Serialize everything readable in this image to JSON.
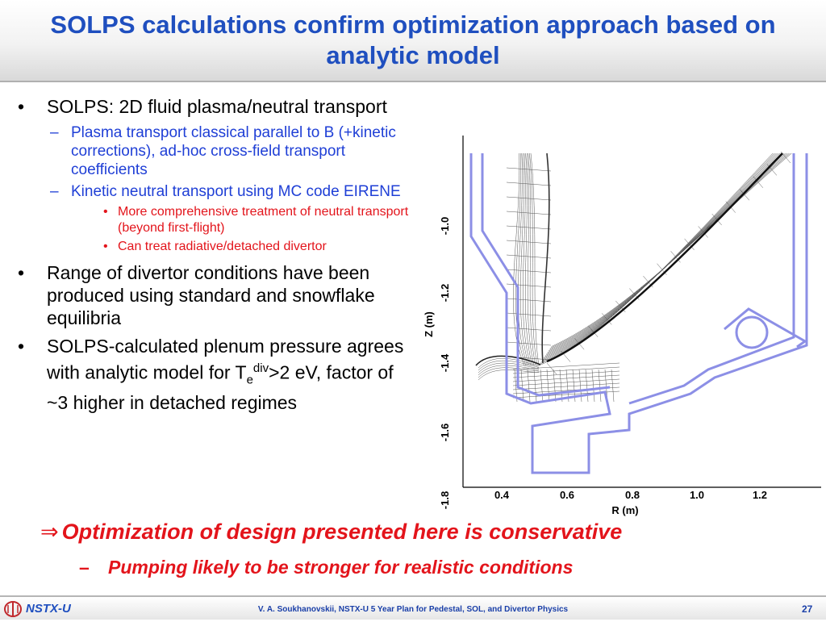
{
  "slide": {
    "title": "SOLPS calculations confirm optimization approach based on analytic model",
    "bullets": [
      {
        "text": "SOLPS: 2D fluid plasma/neutral transport"
      },
      {
        "text": "Plasma transport classical parallel to B (+kinetic corrections), ad-hoc cross-field transport coefficients"
      },
      {
        "text": "Kinetic neutral transport using MC code EIRENE"
      },
      {
        "text": "More comprehensive treatment of neutral transport (beyond first-flight)"
      },
      {
        "text": "Can treat radiative/detached divertor"
      },
      {
        "text": "Range of divertor conditions have been produced using standard and snowflake equilibria"
      },
      {
        "text_before": "SOLPS-calculated plenum pressure agrees with analytic model for T",
        "sub": "e",
        "sup": "div",
        "text_after": ">2 eV, factor of ~3 higher in detached regimes"
      }
    ],
    "bullet_glyph": "•",
    "dash_glyph": "–",
    "conclusion": {
      "arrow": "⇒",
      "text": "Optimization of design presented here is conservative"
    },
    "sub_conclusion": {
      "dash": "–",
      "text": "Pumping likely to be stronger for realistic conditions"
    }
  },
  "figure": {
    "x_label": "R (m)",
    "y_label": "Z (m)",
    "x_ticks": [
      "0.4",
      "0.6",
      "0.8",
      "1.0",
      "1.2"
    ],
    "y_ticks": [
      "-1.0",
      "-1.2",
      "-1.4",
      "-1.6",
      "-1.8"
    ],
    "wall_color": "#8c8fe6",
    "mesh_color": "#555555"
  },
  "footer": {
    "logo_text": "NSTX-U",
    "citation": "V. A. Soukhanovskii, NSTX-U 5 Year Plan for Pedestal, SOL, and Divertor Physics",
    "page": "27"
  }
}
